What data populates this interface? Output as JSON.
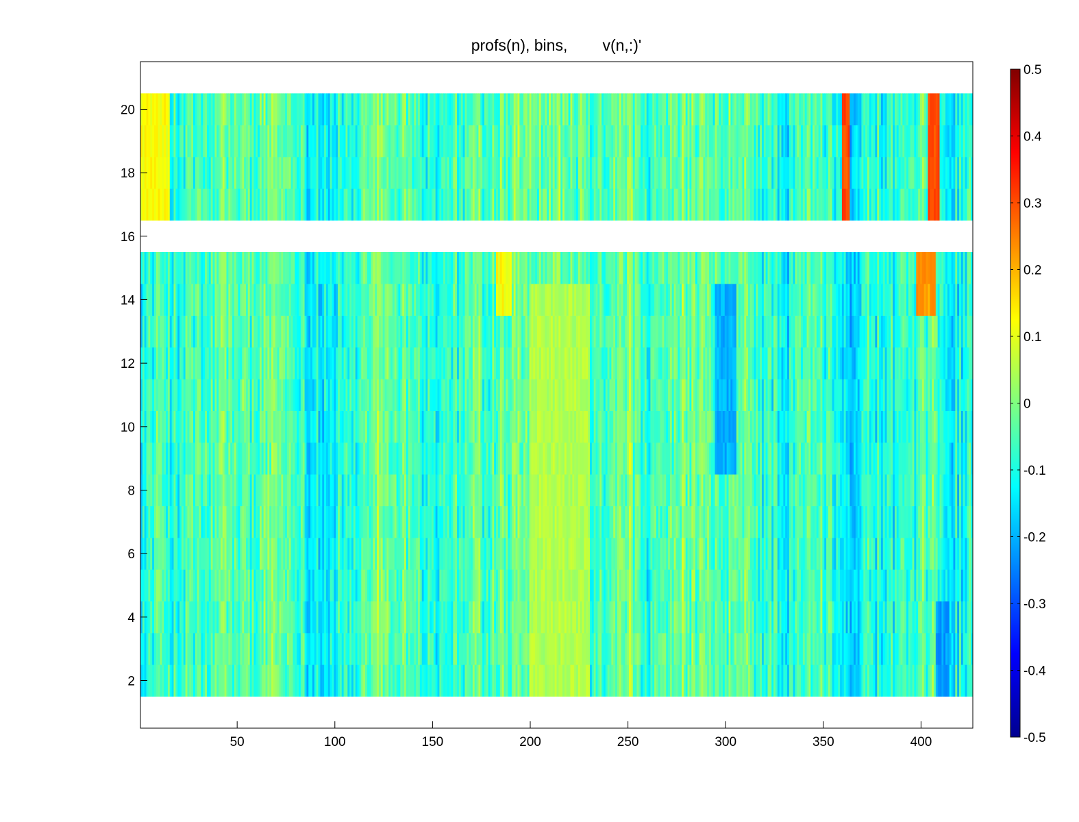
{
  "chart_data": {
    "type": "heatmap",
    "title": "profs(n), bins,        v(n,:)'",
    "xlabel": "",
    "ylabel": "",
    "x_range": [
      1,
      426
    ],
    "y_range": [
      1,
      21
    ],
    "x_ticks": [
      50,
      100,
      150,
      200,
      250,
      300,
      350,
      400
    ],
    "y_ticks": [
      2,
      4,
      6,
      8,
      10,
      12,
      14,
      16,
      18,
      20
    ],
    "rows": [
      2,
      3,
      4,
      5,
      6,
      7,
      8,
      9,
      10,
      11,
      12,
      13,
      14,
      15,
      17,
      18,
      19,
      20
    ],
    "missing_rows": [
      16
    ],
    "columns": 426,
    "colormap": "jet",
    "clim": [
      -0.5,
      0.5
    ],
    "colorbar_ticks": [
      "-0.5",
      "-0.4",
      "-0.3",
      "-0.2",
      "-0.1",
      "0",
      "0.1",
      "0.2",
      "0.3",
      "0.4",
      "0.5"
    ],
    "colorbar_ticks_values": [
      -0.5,
      -0.4,
      -0.3,
      -0.2,
      -0.1,
      0,
      0.1,
      0.2,
      0.3,
      0.4,
      0.5
    ],
    "features": [
      {
        "rows": [
          17,
          20
        ],
        "x_from": 360,
        "x_to": 363,
        "value": 0.3
      },
      {
        "rows": [
          17,
          20
        ],
        "x_from": 404,
        "x_to": 409,
        "value": 0.3
      },
      {
        "rows": [
          14,
          16
        ],
        "x_from": 398,
        "x_to": 407,
        "value": 0.22
      },
      {
        "rows": [
          14,
          16
        ],
        "x_from": 183,
        "x_to": 190,
        "value": 0.12
      },
      {
        "rows": [
          17,
          20
        ],
        "x_from": 1,
        "x_to": 15,
        "value": 0.12
      },
      {
        "rows": [
          2,
          14
        ],
        "x_from": 200,
        "x_to": 230,
        "value": 0.05
      },
      {
        "rows": [
          9,
          14
        ],
        "x_from": 295,
        "x_to": 305,
        "value": -0.2
      },
      {
        "rows": [
          2,
          4
        ],
        "x_from": 408,
        "x_to": 414,
        "value": -0.22
      }
    ]
  }
}
